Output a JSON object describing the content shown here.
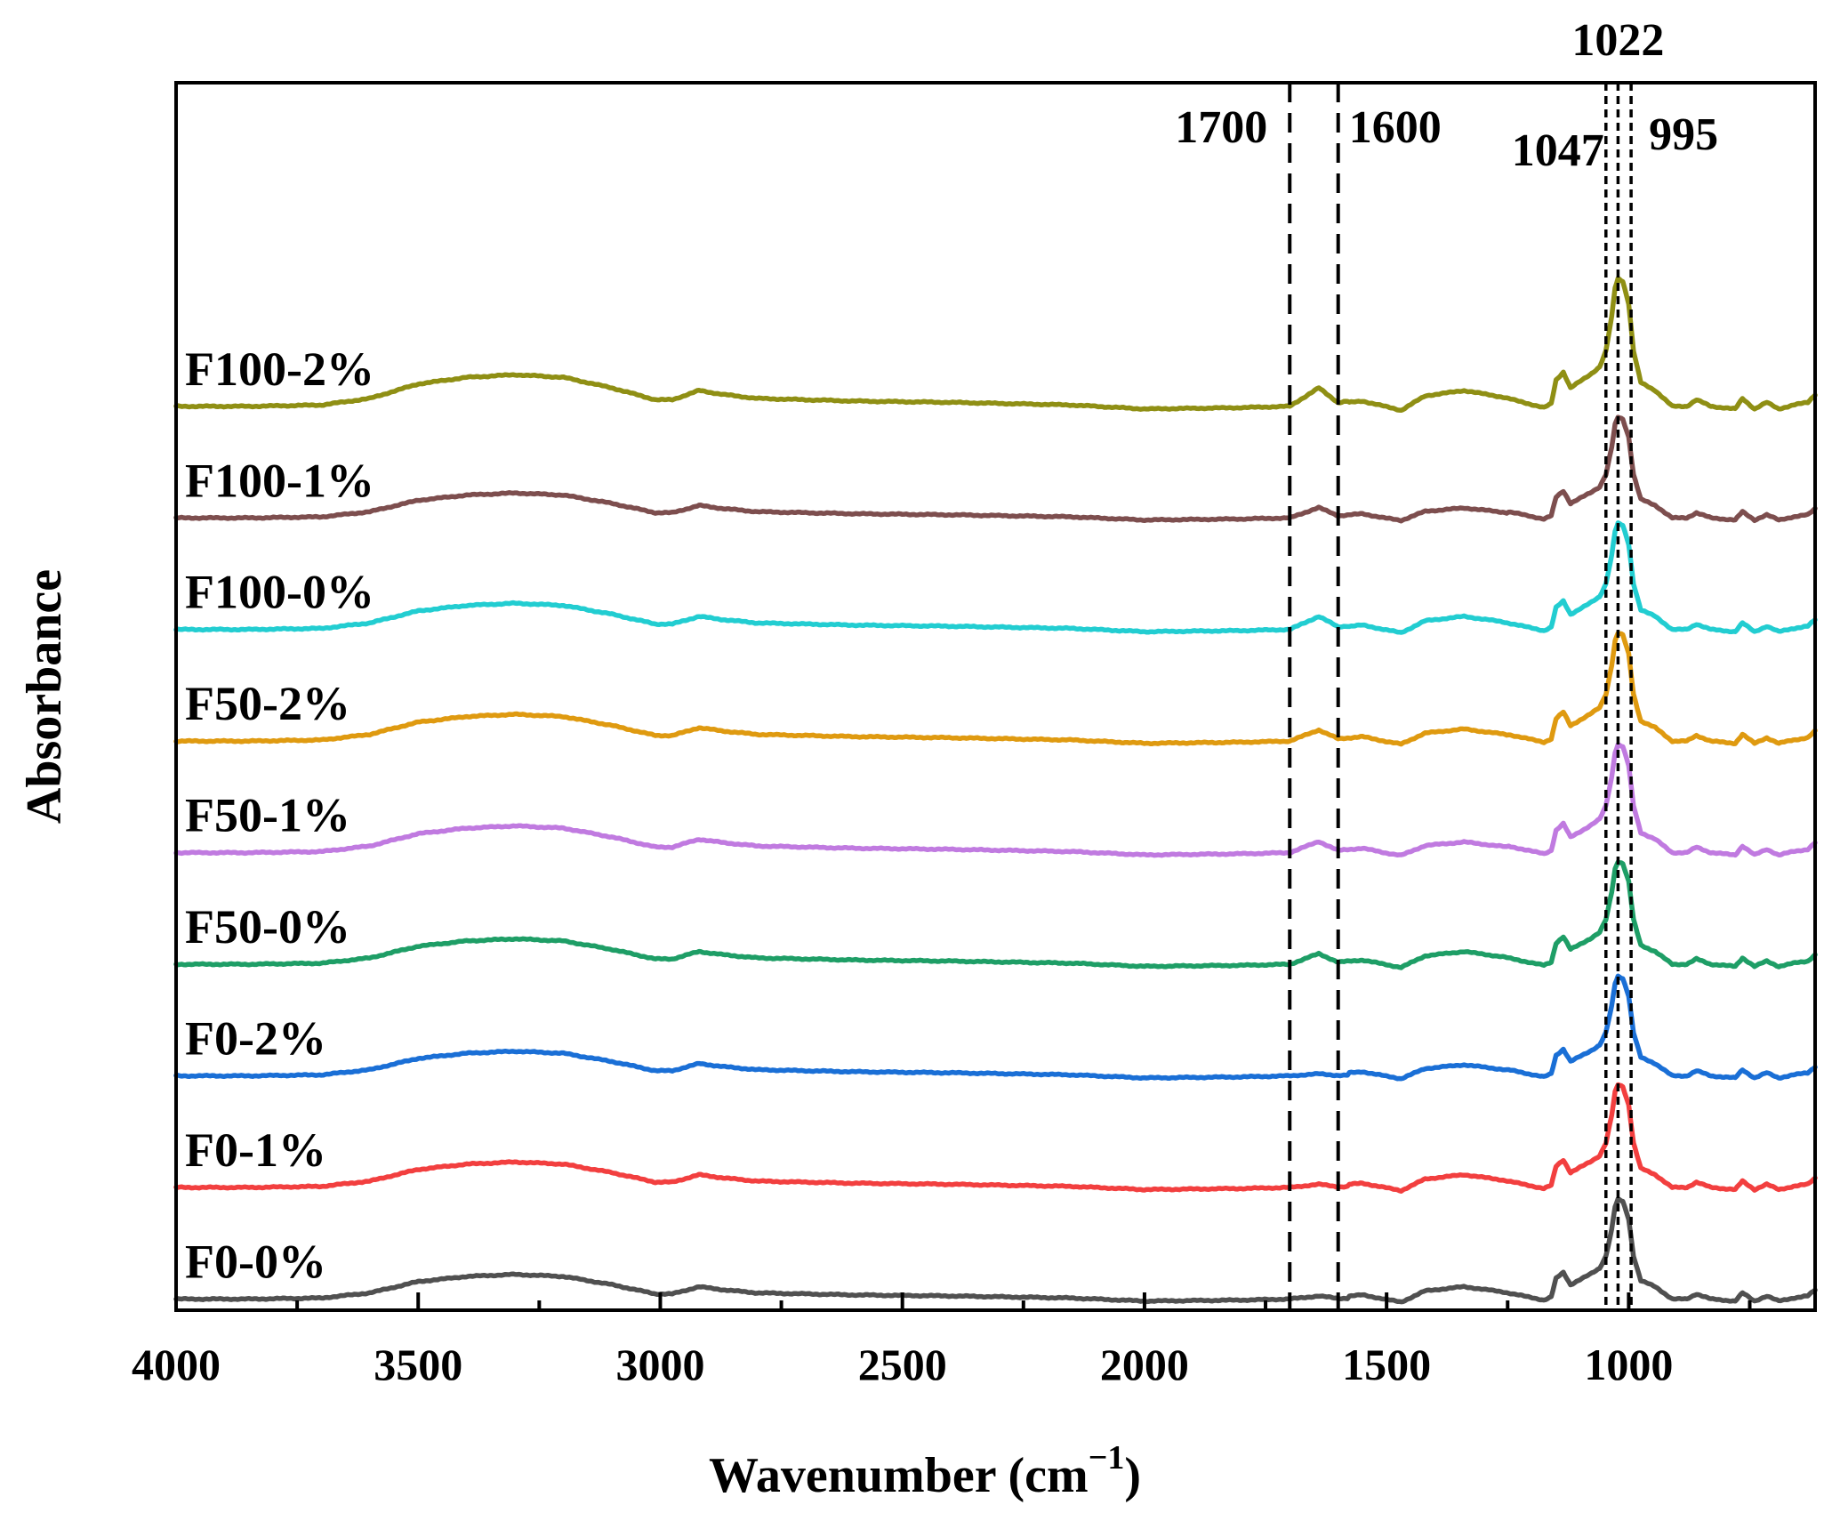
{
  "chart_data": {
    "type": "line",
    "title": "",
    "xlabel_main": "Wavenumber (cm",
    "xlabel_sup": "−1",
    "xlabel_close": ")",
    "ylabel": "Absorbance",
    "xlim": [
      4000,
      615
    ],
    "x_reversed": true,
    "ylim_units": [
      0,
      11
    ],
    "y_ticks_shown": false,
    "x_ticks": [
      {
        "value": 4000,
        "label": "4000"
      },
      {
        "value": 3500,
        "label": "3500"
      },
      {
        "value": 3000,
        "label": "3000"
      },
      {
        "value": 2500,
        "label": "2500"
      },
      {
        "value": 2000,
        "label": "2000"
      },
      {
        "value": 1500,
        "label": "1500"
      },
      {
        "value": 1000,
        "label": "1000"
      }
    ],
    "x_minor_ticks": [
      3750,
      3250,
      2750,
      2250,
      1750,
      1250,
      750
    ],
    "reference_lines": [
      {
        "value": 1700,
        "label": "1700",
        "style": "long-dash"
      },
      {
        "value": 1600,
        "label": "1600",
        "style": "long-dash"
      },
      {
        "value": 1047,
        "label": "1047",
        "style": "short-dash"
      },
      {
        "value": 1022,
        "label": "1022",
        "style": "short-dash"
      },
      {
        "value": 995,
        "label": "995",
        "style": "short-dash"
      }
    ],
    "profile_points": [
      [
        4000,
        0.0
      ],
      [
        3850,
        0.0
      ],
      [
        3700,
        0.01
      ],
      [
        3600,
        0.06
      ],
      [
        3500,
        0.17
      ],
      [
        3400,
        0.22
      ],
      [
        3300,
        0.24
      ],
      [
        3200,
        0.22
      ],
      [
        3100,
        0.14
      ],
      [
        3010,
        0.05
      ],
      [
        2975,
        0.05
      ],
      [
        2920,
        0.12
      ],
      [
        2870,
        0.09
      ],
      [
        2800,
        0.06
      ],
      [
        2600,
        0.04
      ],
      [
        2400,
        0.03
      ],
      [
        2150,
        0.01
      ],
      [
        2000,
        -0.02
      ],
      [
        1800,
        -0.01
      ],
      [
        1700,
        0.0
      ],
      [
        1640,
        0.1
      ],
      [
        1600,
        0.02
      ],
      [
        1550,
        0.04
      ],
      [
        1470,
        -0.03
      ],
      [
        1420,
        0.08
      ],
      [
        1340,
        0.12
      ],
      [
        1260,
        0.07
      ],
      [
        1175,
        -0.01
      ],
      [
        1160,
        0.02
      ],
      [
        1150,
        0.2
      ],
      [
        1135,
        0.26
      ],
      [
        1120,
        0.14
      ],
      [
        1080,
        0.24
      ],
      [
        1060,
        0.3
      ],
      [
        1047,
        0.42
      ],
      [
        1035,
        0.68
      ],
      [
        1028,
        0.9
      ],
      [
        1022,
        0.97
      ],
      [
        1012,
        0.95
      ],
      [
        1000,
        0.78
      ],
      [
        990,
        0.42
      ],
      [
        975,
        0.18
      ],
      [
        945,
        0.12
      ],
      [
        910,
        0.0
      ],
      [
        880,
        0.0
      ],
      [
        860,
        0.05
      ],
      [
        830,
        0.0
      ],
      [
        780,
        -0.02
      ],
      [
        765,
        0.06
      ],
      [
        740,
        -0.02
      ],
      [
        715,
        0.03
      ],
      [
        690,
        -0.02
      ],
      [
        660,
        0.01
      ],
      [
        630,
        0.03
      ],
      [
        615,
        0.09
      ]
    ],
    "series": [
      {
        "name": "F0-0%",
        "color": "#505050",
        "baseline": 0.1,
        "band1650": 0.3,
        "band1420": 1.0,
        "scale": 0.92
      },
      {
        "name": "F0-1%",
        "color": "#f23f3f",
        "baseline": 1.1,
        "band1650": 0.3,
        "band1420": 1.0,
        "scale": 0.95
      },
      {
        "name": "F0-2%",
        "color": "#1a6fd6",
        "baseline": 2.1,
        "band1650": 0.2,
        "band1420": 0.9,
        "scale": 0.92
      },
      {
        "name": "F50-0%",
        "color": "#1e9e66",
        "baseline": 3.1,
        "band1650": 1.0,
        "band1420": 1.0,
        "scale": 0.95
      },
      {
        "name": "F50-1%",
        "color": "#c07ae0",
        "baseline": 4.1,
        "band1650": 1.0,
        "band1420": 0.8,
        "scale": 1.0
      },
      {
        "name": "F50-2%",
        "color": "#df9a10",
        "baseline": 5.1,
        "band1650": 1.0,
        "band1420": 0.9,
        "scale": 1.0
      },
      {
        "name": "F100-0%",
        "color": "#22cdd1",
        "baseline": 6.1,
        "band1650": 1.2,
        "band1420": 1.0,
        "scale": 0.98
      },
      {
        "name": "F100-1%",
        "color": "#7d4e4e",
        "baseline": 7.1,
        "band1650": 1.0,
        "band1420": 0.8,
        "scale": 0.93
      },
      {
        "name": "F100-2%",
        "color": "#8f8f14",
        "baseline": 8.1,
        "band1650": 1.4,
        "band1420": 1.0,
        "scale": 1.18
      }
    ]
  }
}
